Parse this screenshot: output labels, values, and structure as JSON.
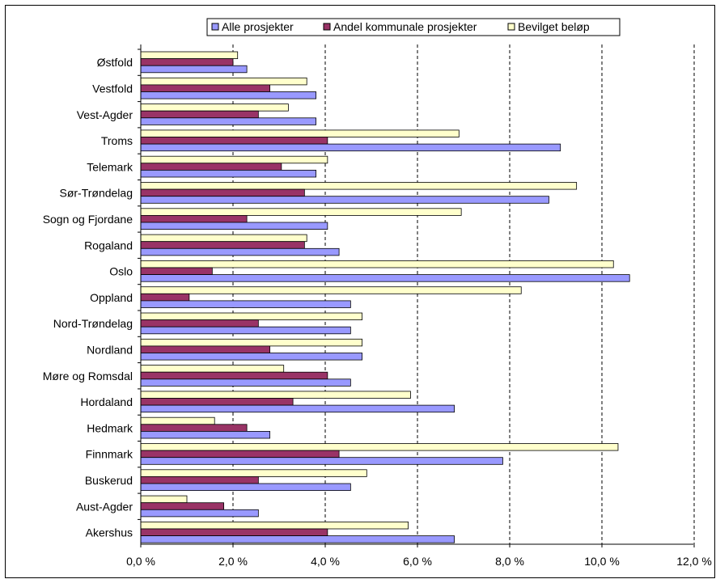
{
  "chart_data": {
    "type": "bar",
    "orientation": "horizontal",
    "title": "",
    "xlabel": "",
    "ylabel": "",
    "xlim": [
      0,
      12
    ],
    "x_ticks": [
      "0,0 %",
      "2,0 %",
      "4,0 %",
      "6,0 %",
      "8,0 %",
      "10,0 %",
      "12,0 %"
    ],
    "grid": "vertical dashed",
    "legend_position": "top",
    "categories": [
      "Østfold",
      "Vestfold",
      "Vest-Agder",
      "Troms",
      "Telemark",
      "Sør-Trøndelag",
      "Sogn og Fjordane",
      "Rogaland",
      "Oslo",
      "Oppland",
      "Nord-Trøndelag",
      "Nordland",
      "Møre og Romsdal",
      "Hordaland",
      "Hedmark",
      "Finnmark",
      "Buskerud",
      "Aust-Agder",
      "Akershus"
    ],
    "series": [
      {
        "name": "Bevilget beløp",
        "color": "#ffffcc",
        "values": [
          2.1,
          3.6,
          3.2,
          6.9,
          4.05,
          9.45,
          6.95,
          3.6,
          10.25,
          8.25,
          4.8,
          4.8,
          3.1,
          5.85,
          1.6,
          10.35,
          4.9,
          1.0,
          5.8
        ]
      },
      {
        "name": "Andel kommunale prosjekter",
        "color": "#993366",
        "values": [
          2.0,
          2.8,
          2.55,
          4.05,
          3.05,
          3.55,
          2.3,
          3.55,
          1.55,
          1.05,
          2.55,
          2.8,
          4.05,
          3.3,
          2.3,
          4.3,
          2.55,
          1.8,
          4.05
        ]
      },
      {
        "name": "Alle prosjekter",
        "color": "#9999ff",
        "values": [
          2.3,
          3.8,
          3.8,
          9.1,
          3.8,
          8.85,
          4.05,
          4.3,
          10.6,
          4.55,
          4.55,
          4.8,
          4.55,
          6.8,
          2.8,
          7.85,
          4.55,
          2.55,
          6.8
        ]
      }
    ]
  },
  "legend": {
    "items": [
      {
        "label": "Alle prosjekter",
        "color": "#9999ff"
      },
      {
        "label": "Andel kommunale prosjekter",
        "color": "#993366"
      },
      {
        "label": "Bevilget beløp",
        "color": "#ffffcc"
      }
    ]
  }
}
